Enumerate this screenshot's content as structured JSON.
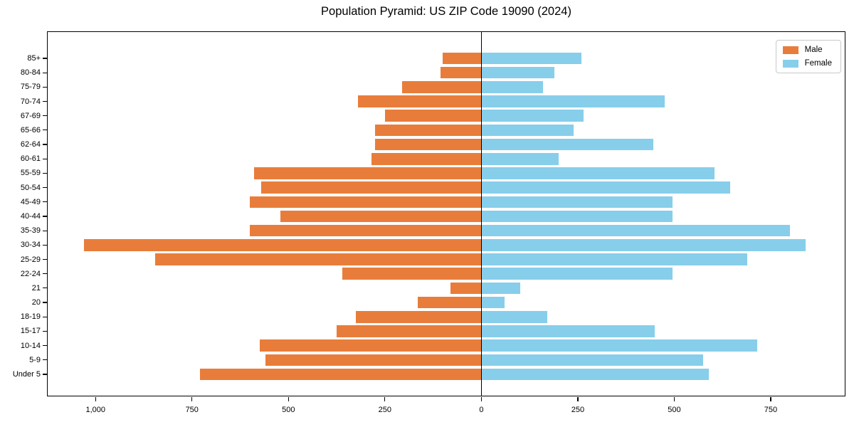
{
  "title": "Population Pyramid: US ZIP Code 19090 (2024)",
  "legend": {
    "male": "Male",
    "female": "Female"
  },
  "colors": {
    "male": "#e87d3b",
    "female": "#87ceeb",
    "axis": "#000000",
    "background": "#ffffff"
  },
  "chart_data": {
    "type": "bar",
    "subtype": "population-pyramid",
    "title": "Population Pyramid: US ZIP Code 19090 (2024)",
    "categories": [
      "85+",
      "80-84",
      "75-79",
      "70-74",
      "67-69",
      "65-66",
      "62-64",
      "60-61",
      "55-59",
      "50-54",
      "45-49",
      "40-44",
      "35-39",
      "30-34",
      "25-29",
      "22-24",
      "21",
      "20",
      "18-19",
      "15-17",
      "10-14",
      "5-9",
      "Under 5"
    ],
    "series": [
      {
        "name": "Male",
        "side": "left",
        "color": "#e87d3b",
        "values": [
          100,
          105,
          205,
          320,
          250,
          275,
          275,
          285,
          590,
          570,
          600,
          520,
          600,
          1030,
          845,
          360,
          80,
          165,
          325,
          375,
          575,
          560,
          730
        ]
      },
      {
        "name": "Female",
        "side": "right",
        "color": "#87ceeb",
        "values": [
          260,
          190,
          160,
          475,
          265,
          240,
          445,
          200,
          605,
          645,
          495,
          495,
          800,
          840,
          690,
          495,
          100,
          60,
          170,
          450,
          715,
          575,
          590
        ]
      }
    ],
    "x_tick_values": [
      -1000,
      -750,
      -500,
      -250,
      0,
      250,
      500,
      750
    ],
    "x_tick_labels": [
      "1,000",
      "750",
      "500",
      "250",
      "0",
      "250",
      "500",
      "750"
    ],
    "xlim": [
      -1124,
      940
    ],
    "xlabel": "",
    "ylabel": "",
    "grid": false,
    "legend_position": "upper right"
  }
}
